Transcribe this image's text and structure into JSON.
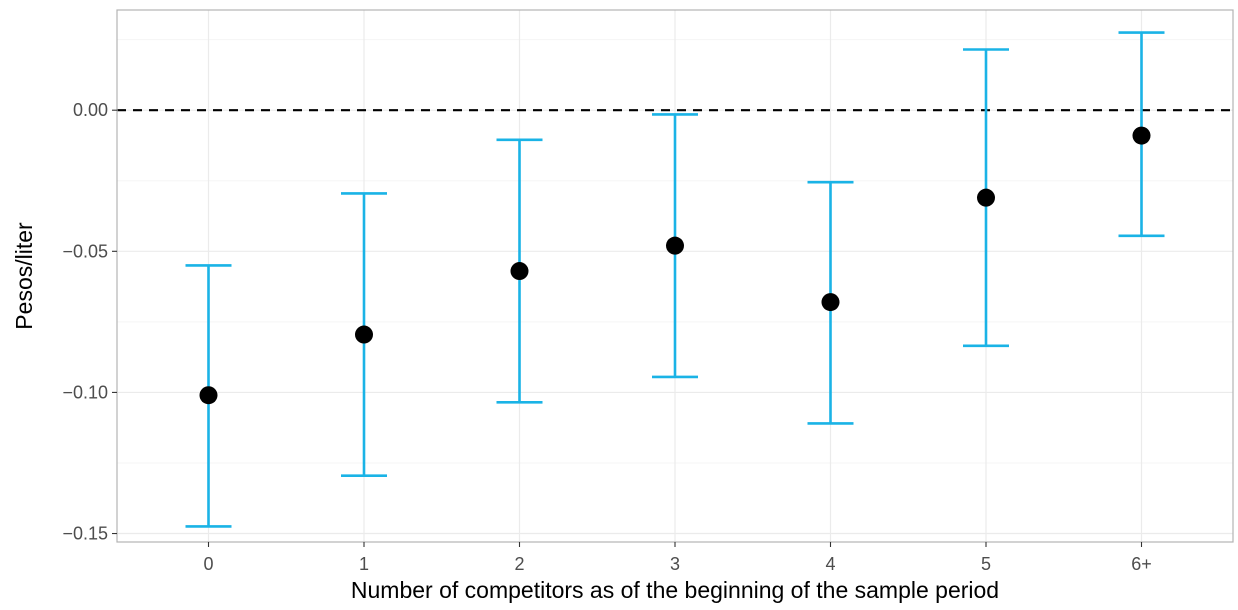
{
  "chart_data": {
    "type": "scatter",
    "subtype": "point-with-error-bars",
    "title": "",
    "xlabel": "Number of competitors as of the beginning of the sample period",
    "ylabel": "Pesos/liter",
    "categories": [
      "0",
      "1",
      "2",
      "3",
      "4",
      "5",
      "6+"
    ],
    "estimates": [
      -0.101,
      -0.0795,
      -0.057,
      -0.048,
      -0.068,
      -0.031,
      -0.009
    ],
    "ci_lower": [
      -0.1475,
      -0.1295,
      -0.1035,
      -0.0945,
      -0.111,
      -0.0835,
      -0.0445
    ],
    "ci_upper": [
      -0.055,
      -0.0295,
      -0.0105,
      -0.0015,
      -0.0255,
      0.0215,
      0.0275
    ],
    "ylim": [
      -0.153,
      0.0355
    ],
    "y_ticks": [
      -0.15,
      -0.1,
      -0.05,
      0.0
    ],
    "y_tick_labels": [
      "−0.15",
      "−0.10",
      "−0.05",
      "0.00"
    ],
    "reference_line": {
      "y": 0,
      "style": "dashed",
      "color": "#000000"
    },
    "grid": true,
    "legend": "none",
    "colors": {
      "error_bar": "#1ab3e6",
      "point": "#000000",
      "grid_major": "#ebebeb",
      "grid_minor": "#f5f5f5",
      "panel_border": "#b3b3b3"
    }
  }
}
